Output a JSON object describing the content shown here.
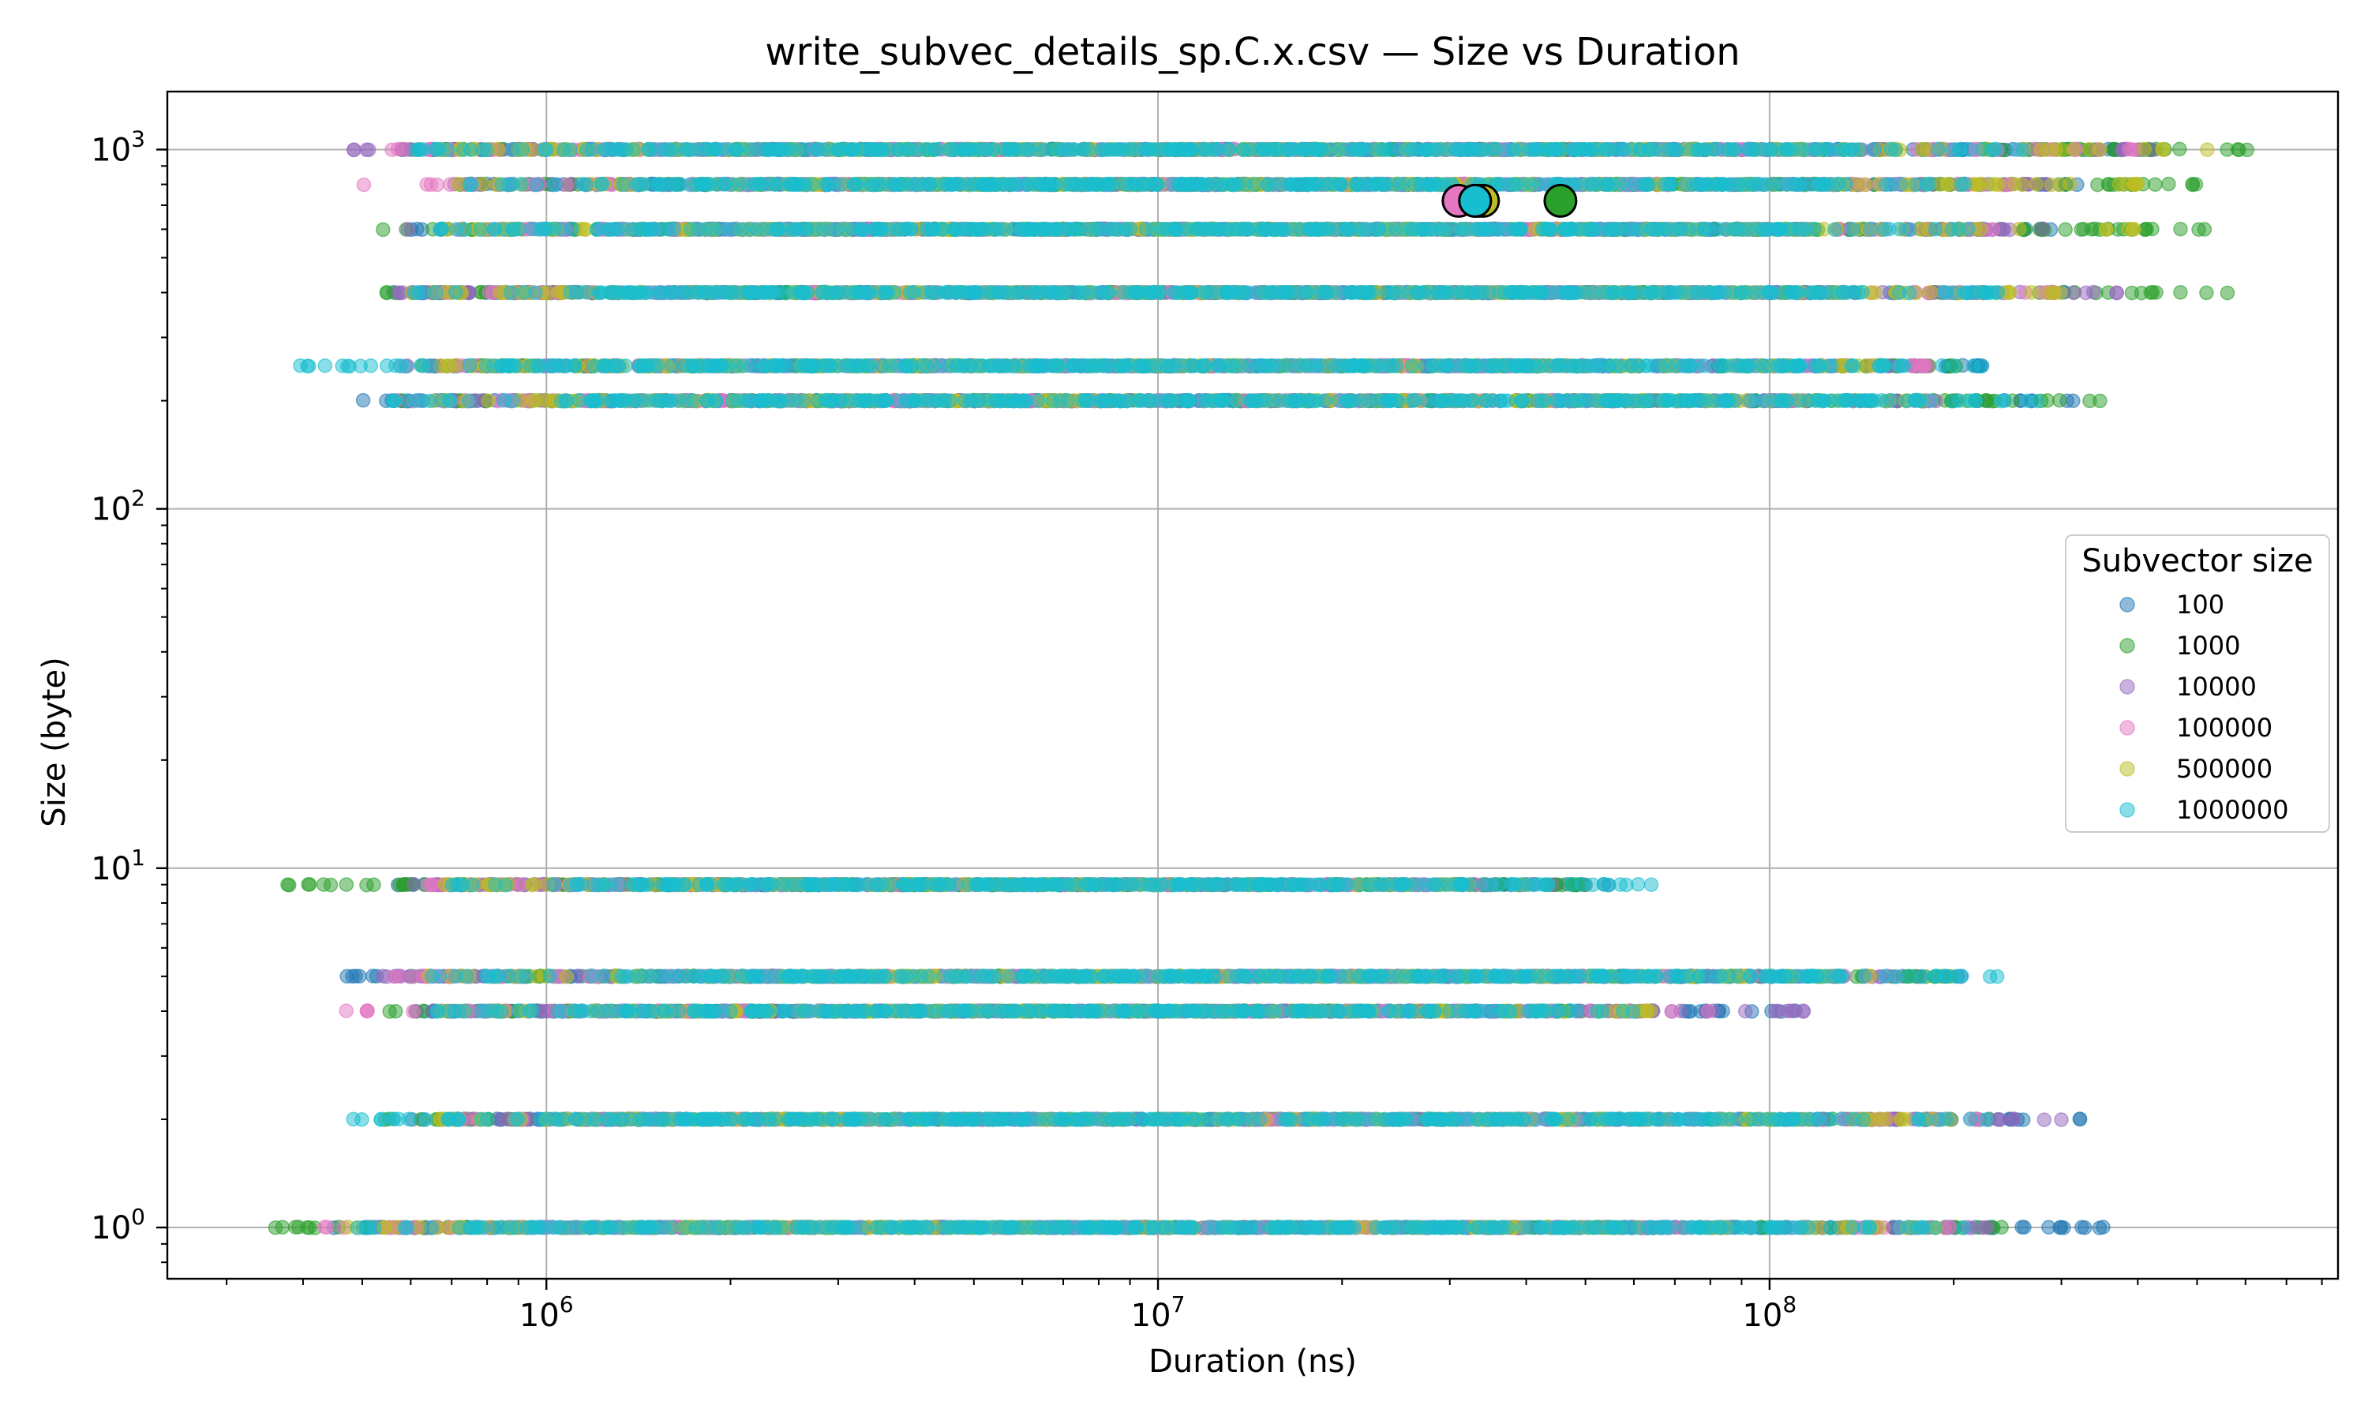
{
  "chart_data": {
    "type": "scatter",
    "title": "write_subvec_details_sp.C.x.csv — Size vs Duration",
    "xlabel": "Duration (ns)",
    "ylabel": "Size (byte)",
    "xscale": "log",
    "yscale": "log",
    "xlim": [
      240000,
      850000000
    ],
    "ylim": [
      0.72,
      1450
    ],
    "grid": true,
    "x_ticks": [
      {
        "value": 1000000,
        "base": "10",
        "exp": "6"
      },
      {
        "value": 10000000,
        "base": "10",
        "exp": "7"
      },
      {
        "value": 100000000,
        "base": "10",
        "exp": "8"
      }
    ],
    "y_ticks": [
      {
        "value": 1,
        "base": "10",
        "exp": "0"
      },
      {
        "value": 10,
        "base": "10",
        "exp": "1"
      },
      {
        "value": 100,
        "base": "10",
        "exp": "2"
      },
      {
        "value": 1000,
        "base": "10",
        "exp": "3"
      }
    ],
    "legend": {
      "title": "Subvector size",
      "position": "center-right"
    },
    "colors": {
      "100": "#1f77b4",
      "1000": "#2ca02c",
      "10000": "#9467bd",
      "100000": "#e377c2",
      "500000": "#bcbd22",
      "1000000": "#17becf"
    },
    "series": [
      {
        "name": "100",
        "color": "#1f77b4",
        "bands": [
          {
            "y": 1000,
            "x_range": [
              560000,
              450000000
            ]
          },
          {
            "y": 800,
            "x_range": [
              740000,
              320000000
            ]
          },
          {
            "y": 600,
            "x_range": [
              600000,
              300000000
            ]
          },
          {
            "y": 400,
            "x_range": [
              560000,
              320000000
            ]
          },
          {
            "y": 250,
            "x_range": [
              430000,
              230000000
            ]
          },
          {
            "y": 200,
            "x_range": [
              470000,
              330000000
            ]
          },
          {
            "y": 9,
            "x_range": [
              530000,
              55000000
            ]
          },
          {
            "y": 5,
            "x_range": [
              470000,
              210000000
            ]
          },
          {
            "y": 4,
            "x_range": [
              600000,
              130000000
            ]
          },
          {
            "y": 2,
            "x_range": [
              600000,
              340000000
            ]
          },
          {
            "y": 1,
            "x_range": [
              380000,
              360000000
            ]
          }
        ],
        "mean": {
          "x": 33000000,
          "y": 720
        }
      },
      {
        "name": "1000",
        "color": "#2ca02c",
        "bands": [
          {
            "y": 1000,
            "x_range": [
              570000,
              650000000
            ]
          },
          {
            "y": 800,
            "x_range": [
              700000,
              560000000
            ]
          },
          {
            "y": 600,
            "x_range": [
              500000,
              550000000
            ]
          },
          {
            "y": 400,
            "x_range": [
              540000,
              620000000
            ]
          },
          {
            "y": 250,
            "x_range": [
              600000,
              210000000
            ]
          },
          {
            "y": 200,
            "x_range": [
              560000,
              450000000
            ]
          },
          {
            "y": 9,
            "x_range": [
              350000,
              50000000
            ]
          },
          {
            "y": 5,
            "x_range": [
              600000,
              200000000
            ]
          },
          {
            "y": 4,
            "x_range": [
              540000,
              60000000
            ]
          },
          {
            "y": 2,
            "x_range": [
              530000,
              230000000
            ]
          },
          {
            "y": 1,
            "x_range": [
              340000,
              240000000
            ]
          }
        ],
        "mean": {
          "x": 45500000,
          "y": 720
        }
      },
      {
        "name": "10000",
        "color": "#9467bd",
        "bands": [
          {
            "y": 1000,
            "x_range": [
              480000,
              430000000
            ]
          },
          {
            "y": 800,
            "x_range": [
              700000,
              300000000
            ]
          },
          {
            "y": 600,
            "x_range": [
              590000,
              280000000
            ]
          },
          {
            "y": 400,
            "x_range": [
              560000,
              380000000
            ]
          },
          {
            "y": 250,
            "x_range": [
              600000,
              200000000
            ]
          },
          {
            "y": 200,
            "x_range": [
              580000,
              200000000
            ]
          },
          {
            "y": 9,
            "x_range": [
              600000,
              45000000
            ]
          },
          {
            "y": 5,
            "x_range": [
              540000,
              180000000
            ]
          },
          {
            "y": 4,
            "x_range": [
              600000,
              115000000
            ]
          },
          {
            "y": 2,
            "x_range": [
              700000,
              300000000
            ]
          },
          {
            "y": 1,
            "x_range": [
              600000,
              230000000
            ]
          }
        ],
        "mean": {
          "x": 33500000,
          "y": 720
        }
      },
      {
        "name": "100000",
        "color": "#e377c2",
        "bands": [
          {
            "y": 1000,
            "x_range": [
              540000,
              400000000
            ]
          },
          {
            "y": 800,
            "x_range": [
              500000,
              260000000
            ]
          },
          {
            "y": 600,
            "x_range": [
              700000,
              250000000
            ]
          },
          {
            "y": 400,
            "x_range": [
              600000,
              300000000
            ]
          },
          {
            "y": 250,
            "x_range": [
              540000,
              190000000
            ]
          },
          {
            "y": 200,
            "x_range": [
              560000,
              190000000
            ]
          },
          {
            "y": 9,
            "x_range": [
              640000,
              35000000
            ]
          },
          {
            "y": 5,
            "x_range": [
              550000,
              160000000
            ]
          },
          {
            "y": 4,
            "x_range": [
              470000,
              80000000
            ]
          },
          {
            "y": 2,
            "x_range": [
              700000,
              220000000
            ]
          },
          {
            "y": 1,
            "x_range": [
              420000,
              200000000
            ]
          }
        ],
        "mean": {
          "x": 31000000,
          "y": 720
        }
      },
      {
        "name": "500000",
        "color": "#bcbd22",
        "bands": [
          {
            "y": 1000,
            "x_range": [
              600000,
              520000000
            ]
          },
          {
            "y": 800,
            "x_range": [
              700000,
              420000000
            ]
          },
          {
            "y": 600,
            "x_range": [
              650000,
              400000000
            ]
          },
          {
            "y": 400,
            "x_range": [
              600000,
              300000000
            ]
          },
          {
            "y": 250,
            "x_range": [
              620000,
              170000000
            ]
          },
          {
            "y": 200,
            "x_range": [
              600000,
              180000000
            ]
          },
          {
            "y": 9,
            "x_range": [
              670000,
              40000000
            ]
          },
          {
            "y": 5,
            "x_range": [
              620000,
              150000000
            ]
          },
          {
            "y": 4,
            "x_range": [
              640000,
              65000000
            ]
          },
          {
            "y": 2,
            "x_range": [
              660000,
              200000000
            ]
          },
          {
            "y": 1,
            "x_range": [
              420000,
              200000000
            ]
          }
        ],
        "mean": {
          "x": 34000000,
          "y": 720
        }
      },
      {
        "name": "1000000",
        "color": "#17becf",
        "bands": [
          {
            "y": 1000,
            "x_range": [
              600000,
              260000000
            ]
          },
          {
            "y": 800,
            "x_range": [
              700000,
              230000000
            ]
          },
          {
            "y": 600,
            "x_range": [
              650000,
              220000000
            ]
          },
          {
            "y": 400,
            "x_range": [
              600000,
              240000000
            ]
          },
          {
            "y": 250,
            "x_range": [
              380000,
              230000000
            ]
          },
          {
            "y": 200,
            "x_range": [
              560000,
              280000000
            ]
          },
          {
            "y": 9,
            "x_range": [
              700000,
              66000000
            ]
          },
          {
            "y": 5,
            "x_range": [
              650000,
              240000000
            ]
          },
          {
            "y": 4,
            "x_range": [
              650000,
              60000000
            ]
          },
          {
            "y": 2,
            "x_range": [
              450000,
              230000000
            ]
          },
          {
            "y": 1,
            "x_range": [
              480000,
              220000000
            ]
          }
        ],
        "mean": {
          "x": 33000000,
          "y": 720
        }
      }
    ]
  }
}
